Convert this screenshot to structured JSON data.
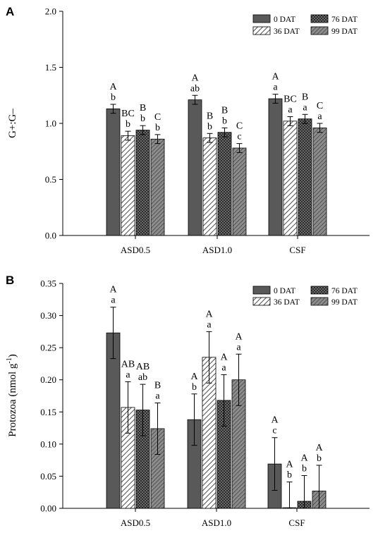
{
  "colors": {
    "dat0": "#595959",
    "dat36": "hatch-white-diagonal",
    "dat76": "crosshatch-dark",
    "dat99": "hatch-gray-diagonal",
    "axis": "#000000"
  },
  "chart_data": [
    {
      "panel": "A",
      "type": "bar",
      "ylabel": "G+:G–",
      "ylim": [
        0,
        2.0
      ],
      "yticks": [
        "0.0",
        "0.5",
        "1.0",
        "1.5",
        "2.0"
      ],
      "ytick_values": [
        0,
        0.5,
        1.0,
        1.5,
        2.0
      ],
      "categories": [
        "ASD0.5",
        "ASD1.0",
        "CSF"
      ],
      "legend": [
        "0 DAT",
        "76 DAT",
        "36 DAT",
        "99 DAT"
      ],
      "legend_position": "top-right",
      "series": [
        {
          "name": "0 DAT",
          "values": [
            1.13,
            1.21,
            1.22
          ],
          "errors": [
            0.04,
            0.04,
            0.04
          ],
          "upper": [
            "A",
            "A",
            "A"
          ],
          "lower": [
            "b",
            "ab",
            "a"
          ]
        },
        {
          "name": "36 DAT",
          "values": [
            0.89,
            0.87,
            1.02
          ],
          "errors": [
            0.04,
            0.04,
            0.04
          ],
          "upper": [
            "BC",
            "B",
            "BC"
          ],
          "lower": [
            "b",
            "b",
            "a"
          ]
        },
        {
          "name": "76 DAT",
          "values": [
            0.94,
            0.92,
            1.04
          ],
          "errors": [
            0.04,
            0.04,
            0.04
          ],
          "upper": [
            "B",
            "B",
            "B"
          ],
          "lower": [
            "b",
            "b",
            "a"
          ]
        },
        {
          "name": "99 DAT",
          "values": [
            0.86,
            0.78,
            0.96
          ],
          "errors": [
            0.04,
            0.04,
            0.04
          ],
          "upper": [
            "C",
            "C",
            "C"
          ],
          "lower": [
            "b",
            "c",
            "a"
          ]
        }
      ]
    },
    {
      "panel": "B",
      "type": "bar",
      "ylabel": "Protozoa (nmol g-1)",
      "ylim": [
        0,
        0.35
      ],
      "yticks": [
        "0.00",
        "0.05",
        "0.10",
        "0.15",
        "0.20",
        "0.25",
        "0.30",
        "0.35"
      ],
      "ytick_values": [
        0,
        0.05,
        0.1,
        0.15,
        0.2,
        0.25,
        0.3,
        0.35
      ],
      "categories": [
        "ASD0.5",
        "ASD1.0",
        "CSF"
      ],
      "legend": [
        "0 DAT",
        "76 DAT",
        "36 DAT",
        "99 DAT"
      ],
      "legend_position": "top-right",
      "series": [
        {
          "name": "0 DAT",
          "values": [
            0.273,
            0.138,
            0.069
          ],
          "errors": [
            0.04,
            0.04,
            0.041
          ],
          "upper": [
            "A",
            "A",
            "A"
          ],
          "lower": [
            "a",
            "b",
            "c"
          ]
        },
        {
          "name": "36 DAT",
          "values": [
            0.157,
            0.235,
            0.001
          ],
          "errors": [
            0.04,
            0.04,
            0.04
          ],
          "upper": [
            "AB",
            "A",
            "A"
          ],
          "lower": [
            "a",
            "a",
            "b"
          ]
        },
        {
          "name": "76 DAT",
          "values": [
            0.153,
            0.168,
            0.011
          ],
          "errors": [
            0.04,
            0.04,
            0.04
          ],
          "upper": [
            "AB",
            "A",
            "A"
          ],
          "lower": [
            "ab",
            "a",
            "b"
          ]
        },
        {
          "name": "99 DAT",
          "values": [
            0.124,
            0.2,
            0.027
          ],
          "errors": [
            0.04,
            0.04,
            0.04
          ],
          "upper": [
            "B",
            "A",
            "A"
          ],
          "lower": [
            "a",
            "a",
            "b"
          ]
        }
      ]
    }
  ]
}
